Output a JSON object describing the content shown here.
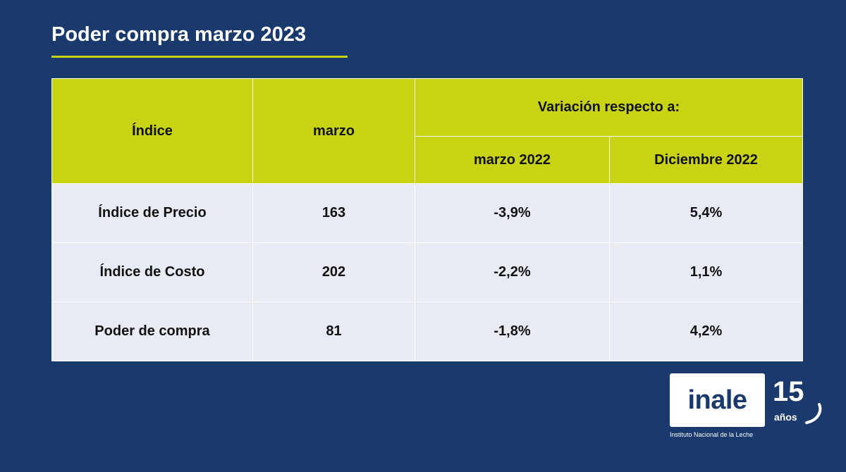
{
  "title": "Poder compra marzo 2023",
  "colors": {
    "background": "#1a3a6e",
    "header_fill": "#c8d313",
    "row_fill": "#e8ebf4",
    "accent_line": "#c8d313"
  },
  "table": {
    "headers": {
      "indice": "Índice",
      "marzo": "marzo",
      "variacion": "Variación respecto a:",
      "marzo_2022": "marzo 2022",
      "diciembre_2022": "Diciembre 2022"
    },
    "rows": [
      {
        "indice": "Índice de Precio",
        "marzo": "163",
        "marzo_2022": "-3,9%",
        "diciembre_2022": "5,4%"
      },
      {
        "indice": "Índice de Costo",
        "marzo": "202",
        "marzo_2022": "-2,2%",
        "diciembre_2022": "1,1%"
      },
      {
        "indice": "Poder de compra",
        "marzo": "81",
        "marzo_2022": "-1,8%",
        "diciembre_2022": "4,2%"
      }
    ]
  },
  "logo": {
    "word": "inale",
    "number": "15",
    "years": "años",
    "caption": "Instituto Nacional de la Leche"
  }
}
